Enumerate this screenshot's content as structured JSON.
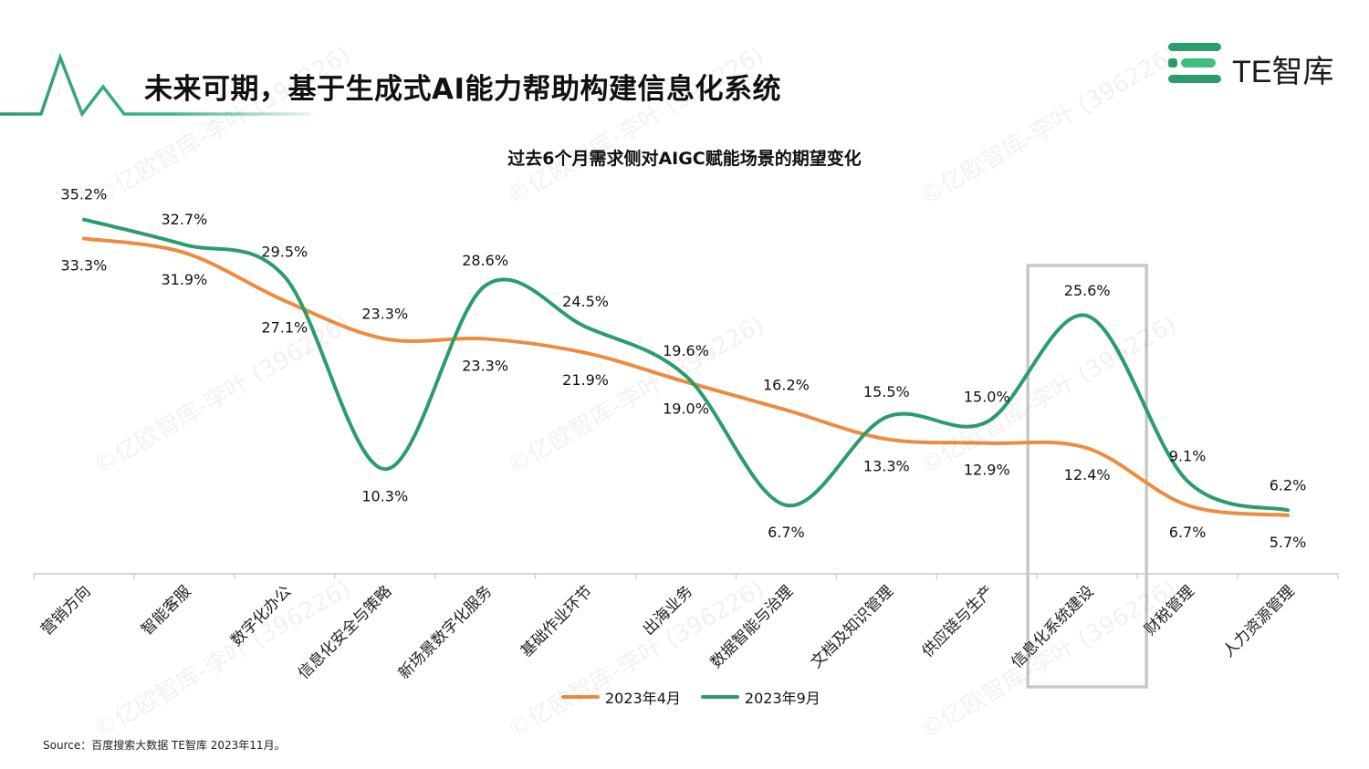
{
  "page": {
    "title": "未来可期，基于生成式AI能力帮助构建信息化系统",
    "source": "Source：百度搜索大数据   TE智库 2023年11月。",
    "logo_text": "TE智库",
    "watermark": "©亿欧智库-李叶 (396226)",
    "colors": {
      "accent_green": "#2a9d6a",
      "april": "#ed8c3f",
      "september": "#2a9d6a",
      "highlight_box": "#c8c8c8"
    }
  },
  "chart_data": {
    "type": "line",
    "title": "过去6个月需求侧对AIGC赋能场景的期望变化",
    "categories": [
      "营销方向",
      "智能客服",
      "数字化办公",
      "信息化安全与策略",
      "新场景数字化服务",
      "基础作业环节",
      "出海业务",
      "数据智能与治理",
      "文档及知识管理",
      "供应链与生产",
      "信息化系统建设",
      "财税管理",
      "人力资源管理"
    ],
    "series": [
      {
        "name": "2023年4月",
        "color": "#ed8c3f",
        "values": [
          33.3,
          31.9,
          27.1,
          23.3,
          23.3,
          21.9,
          19.0,
          16.2,
          13.3,
          12.9,
          12.4,
          6.7,
          5.7
        ],
        "labels": [
          "33.3%",
          "31.9%",
          "27.1%",
          "23.3%",
          "23.3%",
          "21.9%",
          "19.0%",
          "16.2%",
          "13.3%",
          "12.9%",
          "12.4%",
          "6.7%",
          "5.7%"
        ]
      },
      {
        "name": "2023年9月",
        "color": "#2a9d6a",
        "values": [
          35.2,
          32.7,
          29.5,
          10.3,
          28.6,
          24.5,
          19.6,
          6.7,
          15.5,
          15.0,
          25.6,
          9.1,
          6.2
        ],
        "labels": [
          "35.2%",
          "32.7%",
          "29.5%",
          "10.3%",
          "28.6%",
          "24.5%",
          "19.6%",
          "6.7%",
          "15.5%",
          "15.0%",
          "25.6%",
          "9.1%",
          "6.2%"
        ]
      }
    ],
    "highlighted_category": "信息化系统建设",
    "legend_position": "bottom",
    "grid": false,
    "smooth": true
  }
}
